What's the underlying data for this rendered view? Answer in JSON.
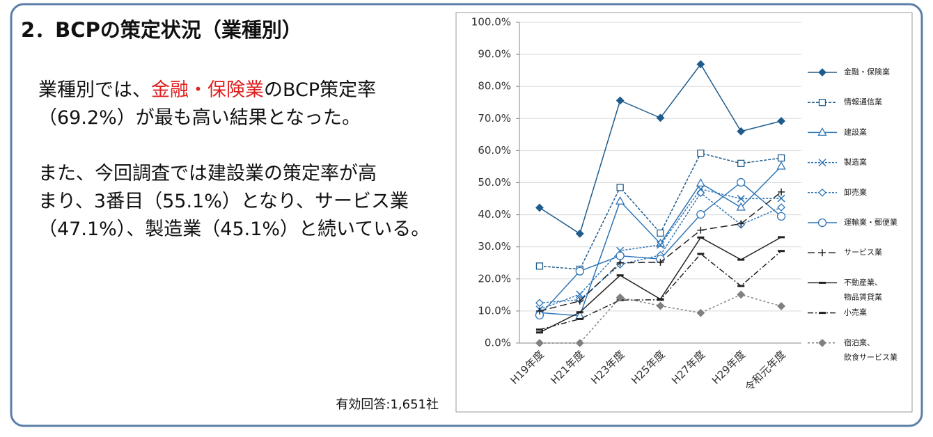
{
  "slide": {
    "title": "2．BCPの策定状況（業種別）",
    "lines": [
      [
        "業種別では、",
        "金融・保険業",
        "のBCP策定率"
      ],
      [
        "（69.2%）が最も高い結果となった。"
      ],
      [
        "また、今回調査では建設業の策定率が高"
      ],
      [
        "まり、3番目（55.1%）となり、サービス業"
      ],
      [
        "（47.1%）、製造業（45.1%）と続いている。"
      ]
    ],
    "note": "有効回答:1,651社"
  },
  "chart_data": {
    "type": "line",
    "categories": [
      "H19年度",
      "H21年度",
      "H23年度",
      "H25年度",
      "H27年度",
      "H29年度",
      "令和元年度"
    ],
    "ylim": [
      0,
      100
    ],
    "yticks": [
      {
        "value": 0,
        "label": "0.0%"
      },
      {
        "value": 10,
        "label": "10.0%"
      },
      {
        "value": 20,
        "label": "20.0%"
      },
      {
        "value": 30,
        "label": "30.0%"
      },
      {
        "value": 40,
        "label": "40.0%"
      },
      {
        "value": 50,
        "label": "50.0%"
      },
      {
        "value": 60,
        "label": "60.0%"
      },
      {
        "value": 70,
        "label": "70.0%"
      },
      {
        "value": 80,
        "label": "80.0%"
      },
      {
        "value": 90,
        "label": "90.0%"
      },
      {
        "value": 100,
        "label": "100.0%"
      }
    ],
    "grid": true,
    "legend": "right",
    "series": [
      {
        "name": "金融・保険業",
        "color": "#1f5c8c",
        "dash": "none",
        "marker": "diamond-filled",
        "values": [
          42.2,
          34.1,
          75.6,
          70.2,
          86.9,
          66.0,
          69.2
        ]
      },
      {
        "name": "情報通信業",
        "color": "#1f5c8c",
        "dash": "4,2",
        "marker": "square",
        "values": [
          24.0,
          23.0,
          48.5,
          34.3,
          59.2,
          56.0,
          57.7
        ]
      },
      {
        "name": "建設業",
        "color": "#2e75b6",
        "dash": "none",
        "marker": "triangle",
        "values": [
          9.5,
          8.5,
          44.2,
          31.0,
          49.8,
          42.3,
          55.1
        ]
      },
      {
        "name": "製造業",
        "color": "#2e75b6",
        "dash": "3,2",
        "marker": "x",
        "values": [
          10.5,
          15.2,
          28.8,
          30.6,
          48.0,
          45.0,
          45.1
        ]
      },
      {
        "name": "卸売業",
        "color": "#2e75b6",
        "dash": "3,2",
        "marker": "diamond-open",
        "values": [
          12.5,
          13.5,
          24.5,
          27.4,
          46.8,
          36.9,
          42.3
        ]
      },
      {
        "name": "運輸業・郵便業",
        "color": "#2e75b6",
        "dash": "none",
        "marker": "circle",
        "values": [
          8.7,
          22.4,
          27.2,
          26.2,
          40.1,
          50.1,
          39.5
        ]
      },
      {
        "name": "サービス業",
        "color": "#222222",
        "dash": "10,5",
        "marker": "plus",
        "values": [
          10.0,
          13.1,
          25.0,
          25.2,
          35.2,
          37.2,
          47.1
        ]
      },
      {
        "name": "不動産業、\n物品賃貸業",
        "color": "#222222",
        "dash": "none",
        "marker": "dash",
        "values": [
          3.3,
          9.6,
          21.1,
          13.7,
          32.9,
          26.0,
          33.0
        ]
      },
      {
        "name": "小売業",
        "color": "#222222",
        "dash": "8,3,2,3",
        "marker": "dash",
        "values": [
          4.2,
          7.5,
          13.4,
          13.5,
          27.8,
          17.8,
          28.7
        ]
      },
      {
        "name": "宿泊業、\n飲食サービス業",
        "color": "#808080",
        "dash": "3,3",
        "marker": "diamond-filled",
        "values": [
          0.0,
          0.0,
          14.2,
          11.6,
          9.4,
          15.1,
          11.5
        ]
      }
    ]
  }
}
